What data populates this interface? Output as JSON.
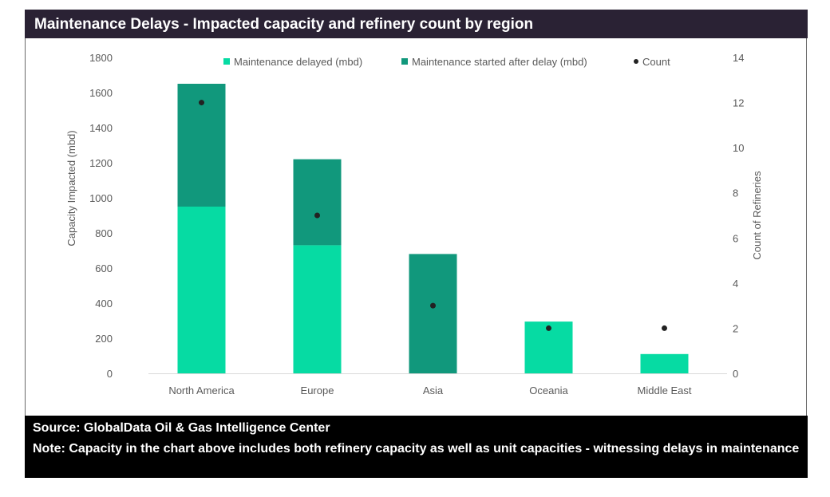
{
  "title": "Maintenance Delays - Impacted capacity and refinery count by region",
  "footer": {
    "source": "Source: GlobalData Oil & Gas Intelligence Center",
    "note": "Note: Capacity in the chart above includes both refinery capacity as well as unit capacities - witnessing delays in maintenance"
  },
  "colors": {
    "delayed": "#06dba3",
    "started": "#11987c",
    "count": "#222222",
    "title_bg": "#2a2234"
  },
  "chart_data": {
    "type": "bar",
    "stacked": true,
    "categories": [
      "North America",
      "Europe",
      "Asia",
      "Oceania",
      "Middle East"
    ],
    "series": [
      {
        "name": "Maintenance delayed (mbd)",
        "values": [
          950,
          730,
          0,
          295,
          110
        ]
      },
      {
        "name": "Maintenance started after delay (mbd)",
        "values": [
          700,
          490,
          680,
          0,
          0
        ]
      }
    ],
    "count": {
      "name": "Count",
      "values": [
        12,
        7,
        3,
        2,
        2
      ]
    },
    "ylabel": "Capacity Impacted (mbd)",
    "y2label": "Count of Refineries",
    "ylim": [
      0,
      1800
    ],
    "y2lim": [
      0,
      14
    ],
    "yticks": [
      "0",
      "200",
      "400",
      "600",
      "800",
      "1000",
      "1200",
      "1400",
      "1600",
      "1800"
    ],
    "y2ticks": [
      "0",
      "2",
      "4",
      "6",
      "8",
      "10",
      "12",
      "14"
    ],
    "legend_position": "top",
    "grid": false
  }
}
